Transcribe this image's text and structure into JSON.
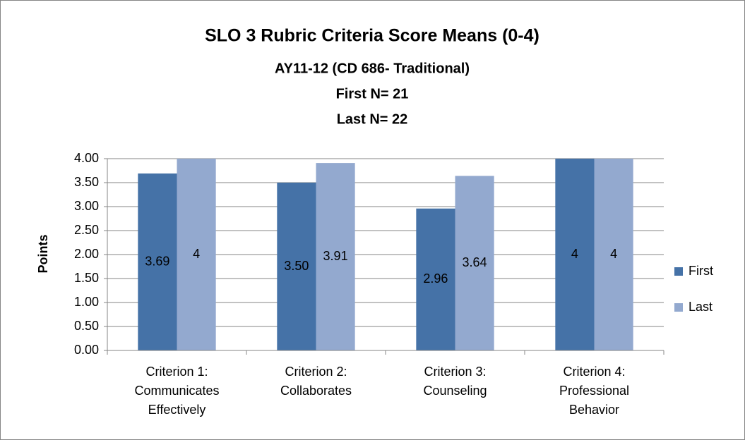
{
  "chart_data": {
    "type": "bar",
    "title": "SLO 3 Rubric Criteria Score Means (0-4)",
    "subtitle": [
      "AY11-12 (CD 686- Traditional)",
      "First N= 21",
      "Last N= 22"
    ],
    "y_label": "Points",
    "categories": [
      "Criterion 1:\nCommunicates\nEffectively",
      "Criterion 2:\nCollaborates",
      "Criterion 3:\nCounseling",
      "Criterion 4:\nProfessional\nBehavior"
    ],
    "series": [
      {
        "name": "First",
        "color": "#4572a7",
        "values": [
          3.69,
          3.5,
          2.96,
          4
        ],
        "value_labels": [
          "3.69",
          "3.50",
          "2.96",
          "4"
        ]
      },
      {
        "name": "Last",
        "color": "#93a9cf",
        "values": [
          4,
          3.91,
          3.64,
          4
        ],
        "value_labels": [
          "4",
          "3.91",
          "3.64",
          "4"
        ]
      }
    ],
    "ylim": [
      0,
      4
    ],
    "yticks": [
      {
        "value": 0,
        "label": "0.00"
      },
      {
        "value": 0.5,
        "label": "0.50"
      },
      {
        "value": 1,
        "label": "1.00"
      },
      {
        "value": 1.5,
        "label": "1.50"
      },
      {
        "value": 2,
        "label": "2.00"
      },
      {
        "value": 2.5,
        "label": "2.50"
      },
      {
        "value": 3,
        "label": "3.00"
      },
      {
        "value": 3.5,
        "label": "3.50"
      },
      {
        "value": 4,
        "label": "4.00"
      }
    ],
    "grid": true,
    "legend": "right"
  }
}
